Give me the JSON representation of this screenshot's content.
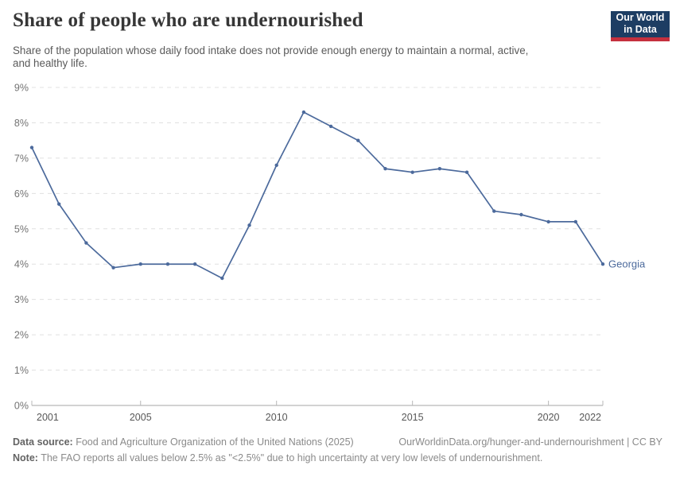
{
  "header": {
    "title": "Share of people who are undernourished",
    "subtitle_lines": [
      "Share of the population whose daily food intake does not provide enough energy to maintain a normal, active,",
      "and healthy life."
    ]
  },
  "logo": {
    "line1": "Our World",
    "line2": "in Data",
    "bg_color": "#1d3d63",
    "accent_color": "#c5303e"
  },
  "chart_data": {
    "type": "line",
    "title": "Share of people who are undernourished",
    "x": [
      2001,
      2002,
      2003,
      2004,
      2005,
      2006,
      2007,
      2008,
      2009,
      2010,
      2011,
      2012,
      2013,
      2014,
      2015,
      2016,
      2017,
      2018,
      2019,
      2020,
      2021,
      2022
    ],
    "series": [
      {
        "name": "Georgia",
        "color": "#4c6a9c",
        "values": [
          7.3,
          5.7,
          4.6,
          3.9,
          4.0,
          4.0,
          4.0,
          3.6,
          5.1,
          6.8,
          8.3,
          7.9,
          7.5,
          6.7,
          6.6,
          6.7,
          6.6,
          5.5,
          5.4,
          5.2,
          5.2,
          4.0
        ]
      }
    ],
    "xlim": [
      2001,
      2022
    ],
    "ylim": [
      0,
      9
    ],
    "x_ticks": [
      2001,
      2005,
      2010,
      2015,
      2020,
      2022
    ],
    "y_ticks": [
      0,
      1,
      2,
      3,
      4,
      5,
      6,
      7,
      8,
      9
    ],
    "y_unit": "%",
    "grid": "horizontal-dashed",
    "legend": "line-end-label"
  },
  "footer": {
    "datasource_label": "Data source:",
    "datasource_text": " Food and Agriculture Organization of the United Nations (2025)",
    "attribution": "OurWorldinData.org/hunger-and-undernourishment | CC BY",
    "note_label": "Note:",
    "note_text": " The FAO reports all values below 2.5% as \"<2.5%\" due to high uncertainty at very low levels of undernourishment."
  }
}
